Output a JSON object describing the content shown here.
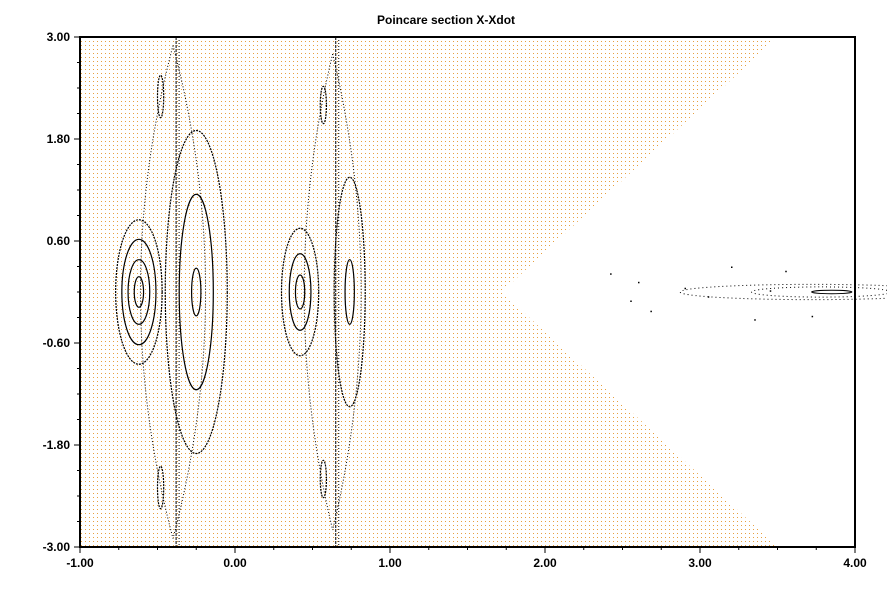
{
  "chart_data": {
    "type": "scatter",
    "title": "Poincare section X-Xdot",
    "xlabel": "",
    "ylabel": "",
    "xlim": [
      -1.0,
      4.0
    ],
    "ylim": [
      -3.0,
      3.0
    ],
    "x_ticks": [
      -1.0,
      0.0,
      1.0,
      2.0,
      3.0,
      4.0
    ],
    "x_tick_labels": [
      "-1.00",
      "0.00",
      "1.00",
      "2.00",
      "3.00",
      "4.00"
    ],
    "y_ticks": [
      -3.0,
      -1.8,
      -0.6,
      0.6,
      1.8,
      3.0
    ],
    "y_tick_labels": [
      "-3.00",
      "-1.80",
      "-0.60",
      "0.60",
      "1.80",
      "3.00"
    ],
    "x_minor_step": 0.25,
    "y_minor_step": 0.3,
    "grid": false,
    "colors": {
      "shade": "#e8a040",
      "curves": "#000000",
      "axis": "#000000"
    },
    "forbidden_region": {
      "description_vertex_x": 1.72,
      "top_edge": {
        "x_at_ymax": 3.5,
        "y": 3.0
      },
      "bottom_edge": {
        "x_at_ymin": 3.5,
        "y": -3.0
      }
    },
    "series": [
      {
        "kind": "ellipse",
        "cx": -0.62,
        "cy": 0.0,
        "rx": [
          0.03,
          0.07,
          0.11,
          0.15
        ],
        "ry": [
          0.18,
          0.38,
          0.62,
          0.85
        ]
      },
      {
        "kind": "ellipse",
        "cx": -0.25,
        "cy": 0.0,
        "rx": [
          0.03,
          0.11,
          0.2
        ],
        "ry": [
          0.28,
          1.15,
          1.9
        ]
      },
      {
        "kind": "ellipse",
        "cx": 0.42,
        "cy": 0.0,
        "rx": [
          0.03,
          0.07,
          0.12
        ],
        "ry": [
          0.2,
          0.45,
          0.75
        ]
      },
      {
        "kind": "ellipse",
        "cx": 0.74,
        "cy": 0.0,
        "rx": [
          0.03,
          0.1
        ],
        "ry": [
          0.38,
          1.35
        ]
      },
      {
        "kind": "ellipse",
        "cx": -0.48,
        "cy": 2.3,
        "rx": [
          0.02
        ],
        "ry": [
          0.25
        ]
      },
      {
        "kind": "ellipse",
        "cx": -0.48,
        "cy": -2.3,
        "rx": [
          0.02
        ],
        "ry": [
          0.25
        ]
      },
      {
        "kind": "ellipse",
        "cx": 0.57,
        "cy": 2.2,
        "rx": [
          0.02
        ],
        "ry": [
          0.22
        ]
      },
      {
        "kind": "ellipse",
        "cx": 0.57,
        "cy": -2.2,
        "rx": [
          0.02
        ],
        "ry": [
          0.22
        ]
      },
      {
        "kind": "separatrix",
        "x_outer": -0.8,
        "x_inner": -0.4,
        "ymax": 2.9
      },
      {
        "kind": "separatrix",
        "x_outer": 0.28,
        "x_inner": 0.63,
        "ymax": 2.8
      },
      {
        "kind": "vline",
        "x": -0.38,
        "ymin": -3.0,
        "ymax": 3.0
      },
      {
        "kind": "vline",
        "x": 0.65,
        "ymin": -3.0,
        "ymax": 3.0
      },
      {
        "kind": "flat_orbit",
        "cx": 3.85,
        "cy": 0.0,
        "rx": [
          0.13,
          0.45,
          0.85
        ],
        "ry": [
          0.02,
          0.06,
          0.09
        ]
      },
      {
        "kind": "scatter_points",
        "x": [
          2.42,
          2.55,
          2.68,
          2.9,
          3.05,
          3.2,
          3.35,
          3.55,
          3.72,
          2.6,
          3.45
        ],
        "y": [
          0.22,
          -0.1,
          -0.22,
          0.05,
          -0.05,
          0.3,
          -0.32,
          0.25,
          -0.28,
          0.12,
          0.02
        ]
      }
    ]
  }
}
